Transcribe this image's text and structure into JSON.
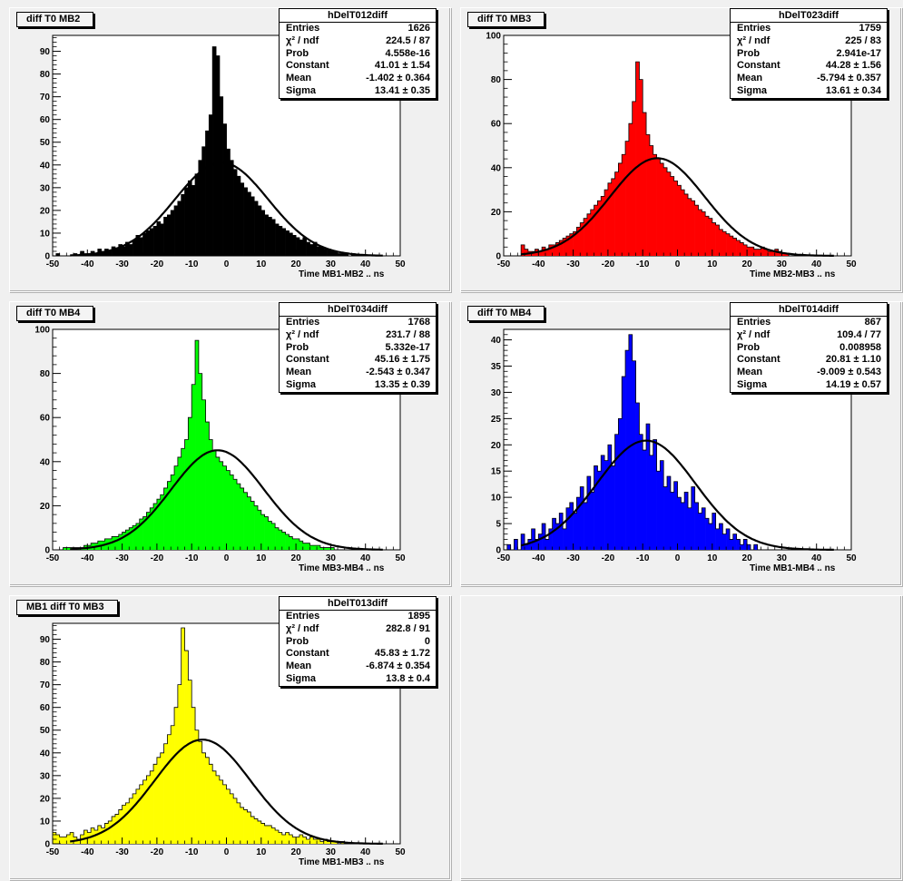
{
  "chart_data": [
    {
      "type": "bar",
      "pad_title": "diff T0 MB2",
      "hist_name": "hDelT012diff",
      "xlabel": "Time MB1-MB2  ..  ns",
      "color": "#000000",
      "xlim": [
        -50,
        50
      ],
      "ylim": [
        0,
        97
      ],
      "yticks": [
        0,
        10,
        20,
        30,
        40,
        50,
        60,
        70,
        80,
        90
      ],
      "bin_width": 1,
      "stats": [
        {
          "label": "Entries",
          "value": "1626"
        },
        {
          "label": "χ² / ndf",
          "value": "224.5 / 87"
        },
        {
          "label": "Prob",
          "value": "4.558e-16"
        },
        {
          "label": "Constant",
          "value": "41.01 ± 1.54"
        },
        {
          "label": "Mean",
          "value": "-1.402 ± 0.364"
        },
        {
          "label": "Sigma",
          "value": "13.41 ± 0.35"
        }
      ],
      "fit": {
        "constant": 41.01,
        "mean": -1.402,
        "sigma": 13.41
      },
      "values": [
        0,
        1,
        0,
        0,
        0,
        0,
        1,
        0,
        2,
        1,
        1,
        2,
        1,
        3,
        2,
        3,
        2,
        4,
        3,
        5,
        4,
        6,
        5,
        7,
        9,
        8,
        10,
        11,
        12,
        13,
        15,
        14,
        17,
        18,
        20,
        22,
        24,
        27,
        30,
        33,
        31,
        36,
        42,
        48,
        55,
        62,
        92,
        88,
        70,
        58,
        47,
        42,
        38,
        35,
        32,
        30,
        28,
        26,
        24,
        22,
        20,
        18,
        17,
        16,
        14,
        13,
        12,
        11,
        10,
        9,
        8,
        7,
        8,
        6,
        5,
        6,
        4,
        4,
        3,
        3,
        2,
        2,
        1,
        1,
        1,
        0,
        1,
        0,
        0,
        0,
        0,
        0,
        0,
        0,
        0,
        0,
        0,
        0,
        0,
        0
      ]
    },
    {
      "type": "bar",
      "pad_title": "diff T0 MB3",
      "hist_name": "hDelT023diff",
      "xlabel": "Time MB2-MB3  ..  ns",
      "color": "#ff0000",
      "xlim": [
        -50,
        50
      ],
      "ylim": [
        0,
        100
      ],
      "yticks": [
        0,
        20,
        40,
        60,
        80,
        100
      ],
      "bin_width": 1,
      "stats": [
        {
          "label": "Entries",
          "value": "1759"
        },
        {
          "label": "χ² / ndf",
          "value": "225 / 83"
        },
        {
          "label": "Prob",
          "value": "2.941e-17"
        },
        {
          "label": "Constant",
          "value": "44.28 ± 1.56"
        },
        {
          "label": "Mean",
          "value": "-5.794 ± 0.357"
        },
        {
          "label": "Sigma",
          "value": "13.61 ± 0.34"
        }
      ],
      "fit": {
        "constant": 44.28,
        "mean": -5.794,
        "sigma": 13.61
      },
      "values": [
        0,
        0,
        0,
        0,
        0,
        5,
        3,
        2,
        2,
        3,
        2,
        4,
        3,
        5,
        5,
        6,
        7,
        8,
        9,
        10,
        11,
        13,
        15,
        17,
        19,
        21,
        23,
        25,
        27,
        30,
        33,
        35,
        38,
        42,
        46,
        52,
        60,
        70,
        88,
        80,
        65,
        55,
        50,
        46,
        44,
        42,
        40,
        38,
        36,
        34,
        32,
        30,
        28,
        26,
        25,
        23,
        21,
        20,
        18,
        17,
        15,
        14,
        12,
        11,
        10,
        9,
        8,
        7,
        6,
        5,
        4,
        4,
        3,
        3,
        4,
        3,
        2,
        2,
        3,
        2,
        1,
        1,
        0,
        0,
        0,
        0,
        0,
        0,
        0,
        0,
        0,
        0,
        0,
        0,
        0,
        0,
        0,
        0,
        0,
        0
      ]
    },
    {
      "type": "bar",
      "pad_title": "diff T0 MB4",
      "hist_name": "hDelT034diff",
      "xlabel": "Time MB3-MB4  ..  ns",
      "color": "#00ff00",
      "xlim": [
        -50,
        50
      ],
      "ylim": [
        0,
        100
      ],
      "yticks": [
        0,
        20,
        40,
        60,
        80,
        100
      ],
      "bin_width": 1,
      "stats": [
        {
          "label": "Entries",
          "value": "1768"
        },
        {
          "label": "χ² / ndf",
          "value": "231.7 / 88"
        },
        {
          "label": "Prob",
          "value": "5.332e-17"
        },
        {
          "label": "Constant",
          "value": "45.16 ± 1.75"
        },
        {
          "label": "Mean",
          "value": "-2.543 ± 0.347"
        },
        {
          "label": "Sigma",
          "value": "13.35 ± 0.39"
        }
      ],
      "fit": {
        "constant": 45.16,
        "mean": -2.543,
        "sigma": 13.35
      },
      "values": [
        0,
        0,
        0,
        1,
        1,
        1,
        1,
        1,
        1,
        2,
        2,
        3,
        3,
        4,
        4,
        5,
        5,
        6,
        6,
        7,
        8,
        9,
        10,
        11,
        12,
        14,
        15,
        17,
        19,
        21,
        23,
        25,
        28,
        31,
        34,
        38,
        42,
        46,
        50,
        60,
        75,
        95,
        80,
        68,
        58,
        50,
        45,
        42,
        40,
        38,
        36,
        34,
        32,
        30,
        28,
        26,
        24,
        22,
        20,
        18,
        16,
        15,
        13,
        12,
        10,
        9,
        8,
        7,
        6,
        5,
        5,
        4,
        3,
        3,
        2,
        2,
        2,
        1,
        1,
        1,
        1,
        0,
        0,
        0,
        0,
        0,
        0,
        0,
        0,
        0,
        0,
        0,
        0,
        0,
        0,
        0,
        0,
        0,
        0,
        0
      ]
    },
    {
      "type": "bar",
      "pad_title": "diff T0 MB4",
      "hist_name": "hDelT014diff",
      "xlabel": "Time MB1-MB4  ..  ns",
      "color": "#0000ff",
      "xlim": [
        -50,
        50
      ],
      "ylim": [
        0,
        42
      ],
      "yticks": [
        0,
        5,
        10,
        15,
        20,
        25,
        30,
        35,
        40
      ],
      "bin_width": 1,
      "stats": [
        {
          "label": "Entries",
          "value": "867"
        },
        {
          "label": "χ² / ndf",
          "value": "109.4 / 77"
        },
        {
          "label": "Prob",
          "value": "0.008958"
        },
        {
          "label": "Constant",
          "value": "20.81 ± 1.10"
        },
        {
          "label": "Mean",
          "value": "-9.009 ± 0.543"
        },
        {
          "label": "Sigma",
          "value": "14.19 ± 0.57"
        }
      ],
      "fit": {
        "constant": 20.81,
        "mean": -9.009,
        "sigma": 14.19
      },
      "values": [
        0,
        1,
        0,
        2,
        0,
        3,
        1,
        2,
        4,
        2,
        3,
        5,
        2,
        4,
        6,
        5,
        7,
        4,
        8,
        9,
        7,
        10,
        12,
        9,
        14,
        11,
        16,
        15,
        18,
        17,
        20,
        16,
        22,
        25,
        33,
        38,
        41,
        36,
        28,
        22,
        19,
        24,
        18,
        21,
        15,
        17,
        12,
        14,
        11,
        13,
        10,
        9,
        11,
        8,
        12,
        9,
        7,
        8,
        6,
        5,
        7,
        4,
        5,
        3,
        4,
        2,
        3,
        2,
        1,
        2,
        1,
        0,
        1,
        0,
        0,
        0,
        0,
        0,
        0,
        0,
        0,
        0,
        0,
        0,
        0,
        0,
        0,
        0,
        0,
        0,
        0,
        0,
        0,
        0,
        0,
        0,
        0,
        0,
        0,
        0
      ]
    },
    {
      "type": "bar",
      "pad_title": "MB1 diff T0 MB3",
      "hist_name": "hDelT013diff",
      "xlabel": "Time MB1-MB3  ..  ns",
      "color": "#ffff00",
      "xlim": [
        -50,
        50
      ],
      "ylim": [
        0,
        97
      ],
      "yticks": [
        0,
        10,
        20,
        30,
        40,
        50,
        60,
        70,
        80,
        90
      ],
      "bin_width": 1,
      "stats": [
        {
          "label": "Entries",
          "value": "1895"
        },
        {
          "label": "χ² / ndf",
          "value": "282.8 / 91"
        },
        {
          "label": "Prob",
          "value": "0"
        },
        {
          "label": "Constant",
          "value": "45.83 ± 1.72"
        },
        {
          "label": "Mean",
          "value": "-6.874 ± 0.354"
        },
        {
          "label": "Sigma",
          "value": "13.8 ± 0.4"
        }
      ],
      "fit": {
        "constant": 45.83,
        "mean": -6.874,
        "sigma": 13.8
      },
      "values": [
        5,
        4,
        3,
        3,
        4,
        5,
        3,
        2,
        4,
        6,
        5,
        7,
        6,
        8,
        7,
        9,
        10,
        12,
        13,
        15,
        17,
        18,
        20,
        22,
        24,
        26,
        28,
        30,
        32,
        35,
        38,
        40,
        44,
        48,
        52,
        60,
        70,
        95,
        85,
        72,
        60,
        50,
        45,
        40,
        38,
        35,
        32,
        30,
        28,
        26,
        24,
        22,
        20,
        18,
        16,
        15,
        14,
        12,
        11,
        10,
        9,
        8,
        8,
        7,
        6,
        5,
        4,
        5,
        4,
        3,
        3,
        4,
        3,
        2,
        3,
        2,
        2,
        1,
        2,
        1,
        1,
        1,
        0,
        1,
        0,
        0,
        0,
        0,
        0,
        0,
        0,
        0,
        0,
        0,
        0,
        0,
        0,
        0,
        0,
        0
      ]
    }
  ]
}
